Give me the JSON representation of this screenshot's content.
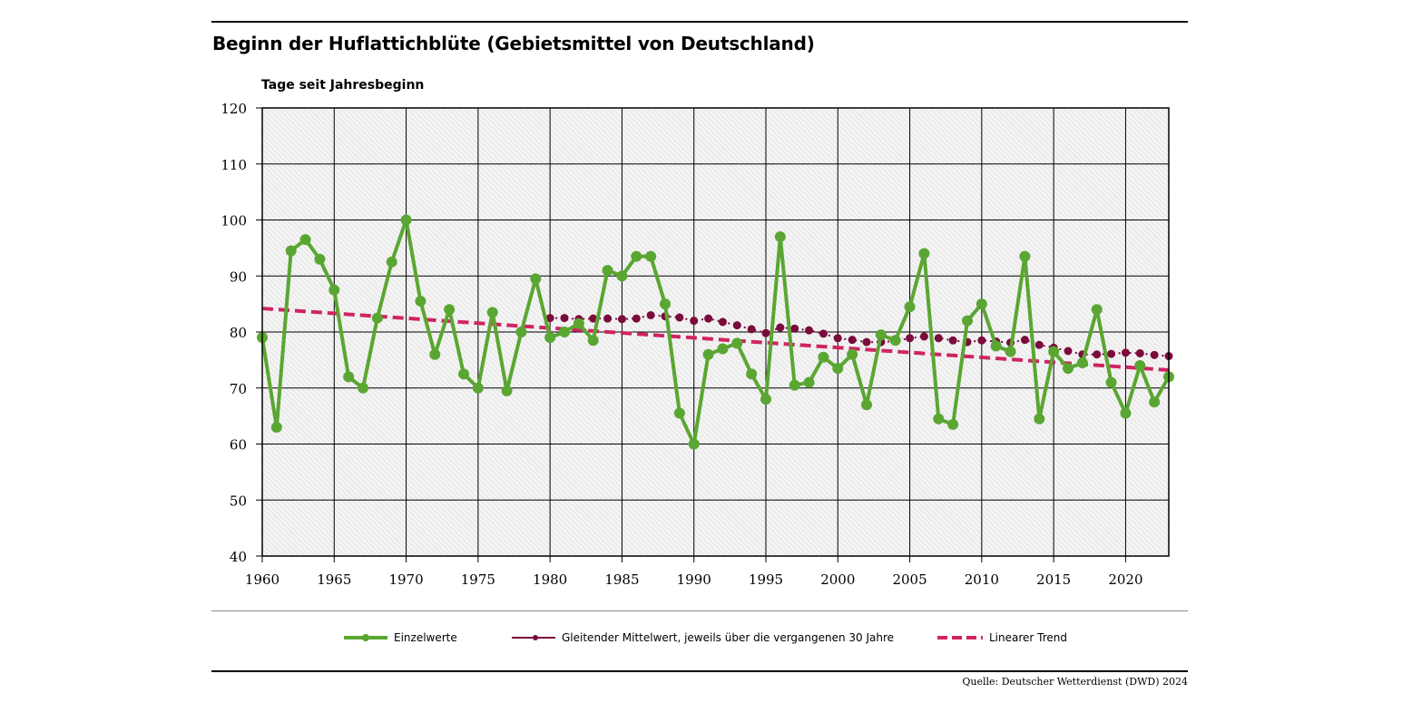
{
  "title": "Beginn der Huflattichblüte (Gebietsmittel von Deutschland)",
  "source": "Quelle: Deutscher Wetterdienst (DWD) 2024",
  "colors": {
    "einzelwerte": "#5aa632",
    "mittel": "#7a0b3c",
    "trend": "#cf2463",
    "grid": "#000000"
  },
  "chart_data": {
    "type": "line",
    "title": "Beginn der Huflattichblüte (Gebietsmittel von Deutschland)",
    "ylabel": "Tage seit Jahresbeginn",
    "xlabel": "",
    "xlim": [
      1960,
      2023
    ],
    "ylim": [
      40,
      120
    ],
    "x_ticks": [
      "1960",
      "1965",
      "1970",
      "1975",
      "1980",
      "1985",
      "1990",
      "1995",
      "2000",
      "2005",
      "2010",
      "2015",
      "2020"
    ],
    "y_ticks": [
      "40",
      "50",
      "60",
      "70",
      "80",
      "90",
      "100",
      "110",
      "120"
    ],
    "grid": true,
    "legend_position": "bottom",
    "series": [
      {
        "name": "Einzelwerte",
        "style": "solid-line-with-markers",
        "x": [
          1960,
          1961,
          1962,
          1963,
          1964,
          1965,
          1966,
          1967,
          1968,
          1969,
          1970,
          1971,
          1972,
          1973,
          1974,
          1975,
          1976,
          1977,
          1978,
          1979,
          1980,
          1981,
          1982,
          1983,
          1984,
          1985,
          1986,
          1987,
          1988,
          1989,
          1990,
          1991,
          1992,
          1993,
          1994,
          1995,
          1996,
          1997,
          1998,
          1999,
          2000,
          2001,
          2002,
          2003,
          2004,
          2005,
          2006,
          2007,
          2008,
          2009,
          2010,
          2011,
          2012,
          2013,
          2014,
          2015,
          2016,
          2017,
          2018,
          2019,
          2020,
          2021,
          2022,
          2023
        ],
        "values": [
          79,
          63,
          94.5,
          96.5,
          93,
          87.5,
          72,
          70,
          82.5,
          92.5,
          100,
          85.5,
          76,
          84,
          72.5,
          70,
          83.5,
          69.5,
          80,
          89.5,
          79,
          80,
          81.5,
          78.5,
          91,
          90,
          93.5,
          93.5,
          85,
          65.5,
          60,
          76,
          77,
          78,
          72.5,
          68,
          97,
          70.5,
          71,
          75.5,
          73.5,
          76,
          67,
          79.5,
          78.5,
          84.5,
          94,
          64.5,
          63.5,
          82,
          85,
          77.5,
          76.5,
          93.5,
          64.5,
          76.5,
          73.5,
          74.5,
          84,
          71,
          65.5,
          74,
          67.5,
          72
        ]
      },
      {
        "name": "Gleitender Mittelwert, jeweils über die vergangenen 30 Jahre",
        "style": "dotted-line-with-markers",
        "x": [
          1980,
          1981,
          1982,
          1983,
          1984,
          1985,
          1986,
          1987,
          1988,
          1989,
          1990,
          1991,
          1992,
          1993,
          1994,
          1995,
          1996,
          1997,
          1998,
          1999,
          2000,
          2001,
          2002,
          2003,
          2004,
          2005,
          2006,
          2007,
          2008,
          2009,
          2010,
          2011,
          2012,
          2013,
          2014,
          2015,
          2016,
          2017,
          2018,
          2019,
          2020,
          2021,
          2022,
          2023
        ],
        "values": [
          82.5,
          82.5,
          82.3,
          82.4,
          82.4,
          82.3,
          82.4,
          83,
          82.8,
          82.6,
          82,
          82.4,
          81.8,
          81.2,
          80.5,
          79.8,
          80.8,
          80.6,
          80.3,
          79.7,
          78.9,
          78.6,
          78.2,
          78.2,
          78.4,
          78.9,
          79.2,
          78.9,
          78.5,
          78.2,
          78.5,
          78.3,
          78.1,
          78.6,
          77.7,
          77.2,
          76.6,
          76,
          76,
          76.1,
          76.3,
          76.2,
          75.9,
          75.7
        ]
      },
      {
        "name": "Linearer Trend",
        "style": "dashed-line",
        "x": [
          1960,
          2023
        ],
        "values": [
          84.2,
          73.2
        ]
      }
    ]
  }
}
